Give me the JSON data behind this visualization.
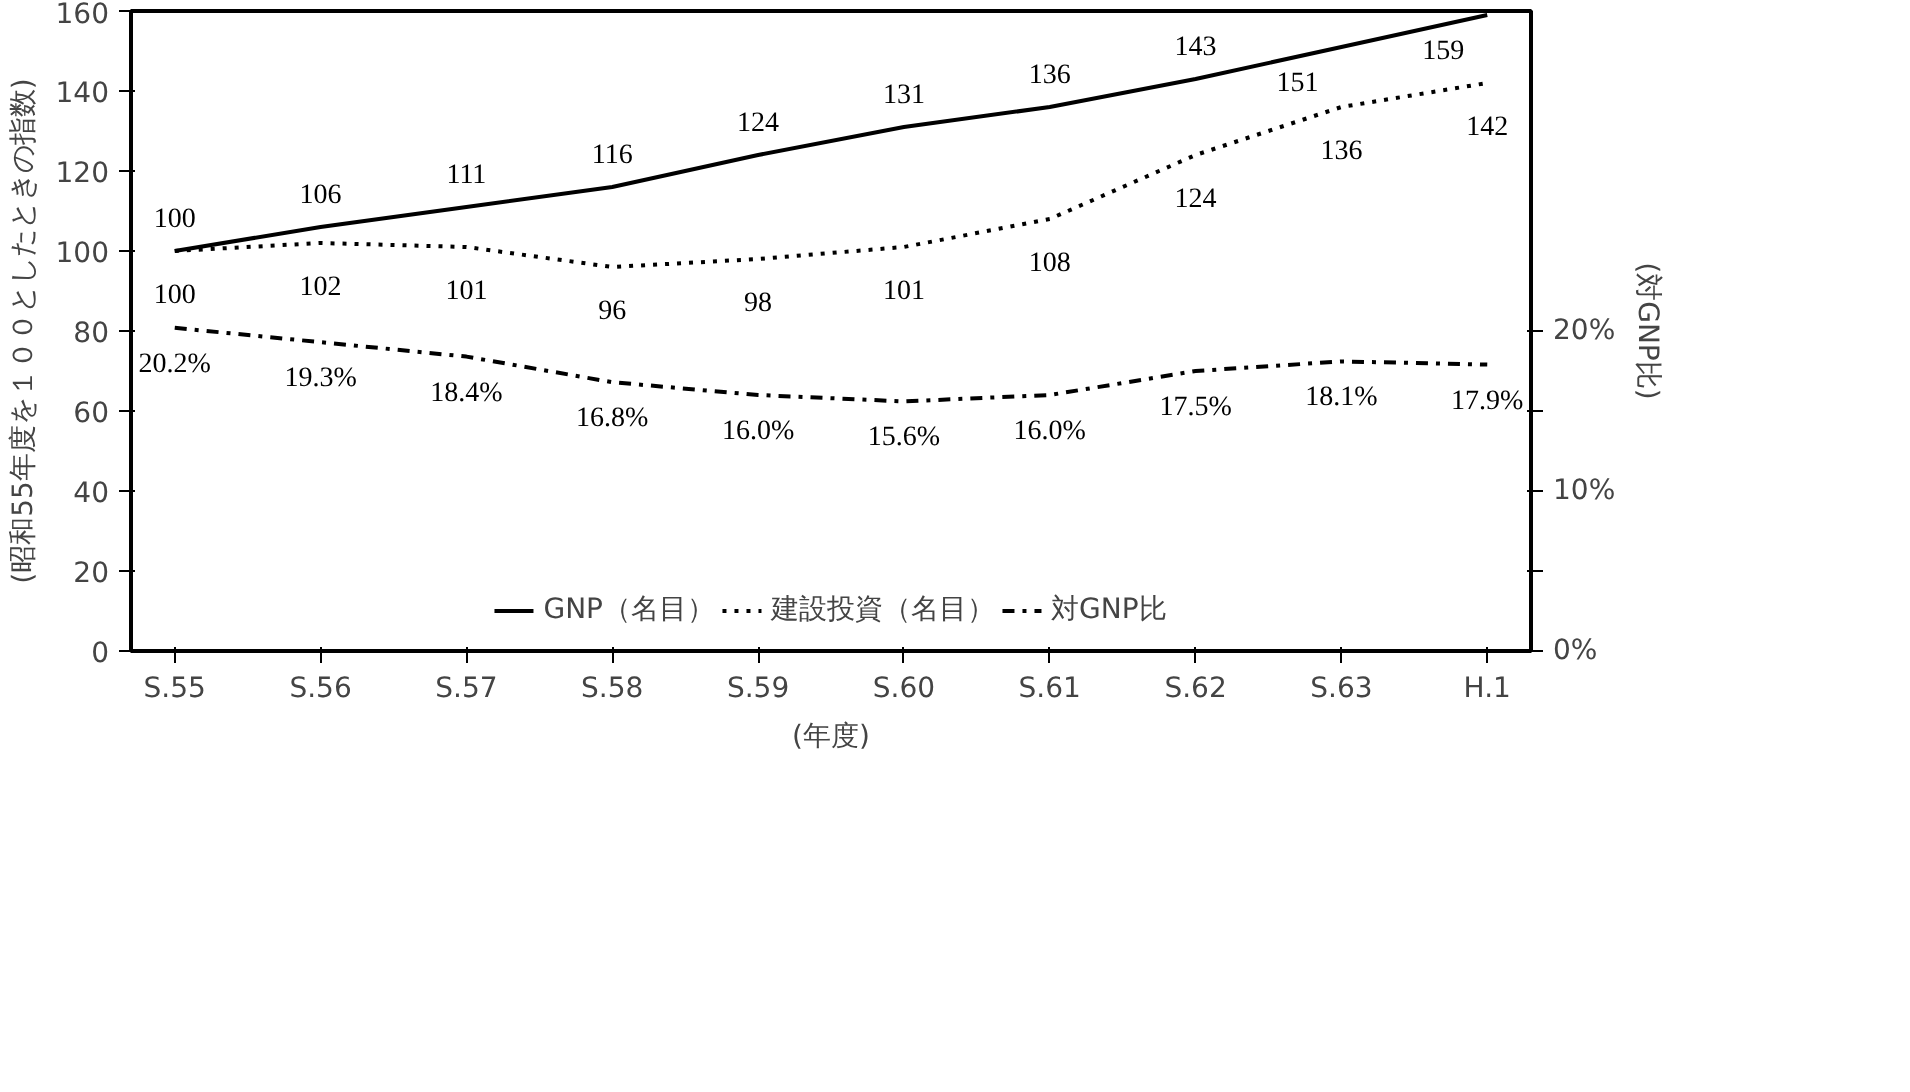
{
  "chart_data": {
    "type": "line",
    "xlabel": "(年度)",
    "ylabel": "(昭和55年度を１００としたときの指数)",
    "y2label": "(対GNP比)",
    "categories": [
      "S.55",
      "S.56",
      "S.57",
      "S.58",
      "S.59",
      "S.60",
      "S.61",
      "S.62",
      "S.63",
      "H.1"
    ],
    "ylim": [
      0,
      160
    ],
    "yticks": [
      0,
      20,
      40,
      60,
      80,
      100,
      120,
      140,
      160
    ],
    "y2lim": [
      0,
      40
    ],
    "y2ticks": [
      {
        "value": 0,
        "label": "0%"
      },
      {
        "value": 5,
        "label": null
      },
      {
        "value": 10,
        "label": "10%"
      },
      {
        "value": 15,
        "label": null
      },
      {
        "value": 20,
        "label": "20%"
      }
    ],
    "grid": false,
    "legend": "bottom",
    "data_labels": true,
    "series": [
      {
        "name": "GNP（名目）",
        "color": "#000000",
        "line_style": "solid",
        "values": [
          100,
          106,
          111,
          116,
          124,
          131,
          136,
          143,
          151,
          159
        ]
      },
      {
        "name": "建設投資（名目）",
        "color": "#000000",
        "line_style": "dotted",
        "values": [
          100,
          102,
          101,
          96,
          98,
          101,
          108,
          124,
          136,
          142
        ]
      },
      {
        "name": "対GNP比",
        "color": "#000000",
        "line_style": "dashdot",
        "axis": "y2",
        "values": [
          20.2,
          19.3,
          18.4,
          16.8,
          16.0,
          15.6,
          16.0,
          17.5,
          18.1,
          17.9
        ],
        "value_labels": [
          "20.2%",
          "19.3%",
          "18.4%",
          "16.8%",
          "16.0%",
          "15.6%",
          "16.0%",
          "17.5%",
          "18.1%",
          "17.9%"
        ]
      }
    ]
  }
}
